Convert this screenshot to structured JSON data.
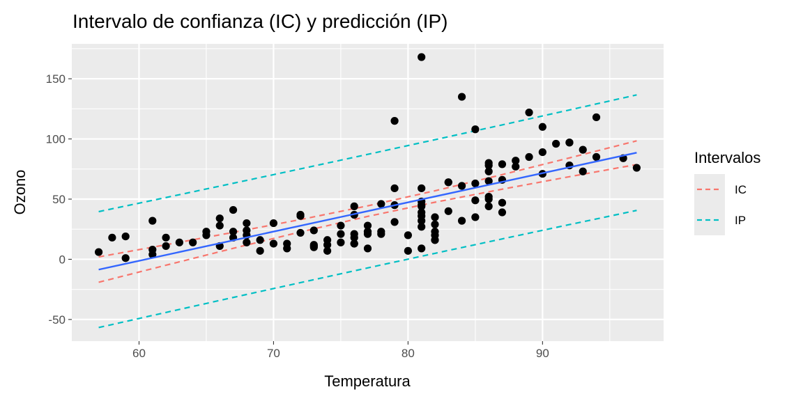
{
  "chart_data": {
    "type": "scatter",
    "title": "Intervalo de confianza (IC) y predicción (IP)",
    "xlabel": "Temperatura",
    "ylabel": "Ozono",
    "xlim": [
      55,
      99
    ],
    "ylim": [
      -68,
      179
    ],
    "x_ticks": [
      60,
      70,
      80,
      90
    ],
    "y_ticks": [
      -50,
      0,
      50,
      100,
      150
    ],
    "x_tick_labels": [
      "60",
      "70",
      "80",
      "90"
    ],
    "y_tick_labels": [
      "-50",
      "0",
      "50",
      "100",
      "150"
    ],
    "grid": true,
    "legend": {
      "title": "Intervalos",
      "placement": "right",
      "entries": [
        "IC",
        "IP"
      ]
    },
    "colors": {
      "points": "#000000",
      "fit": "#3366FF",
      "IC": "#F8766D",
      "IP": "#00BFC4",
      "panel": "#EBEBEB",
      "grid": "#FFFFFF"
    },
    "points": [
      [
        67,
        41
      ],
      [
        72,
        36
      ],
      [
        74,
        12
      ],
      [
        62,
        18
      ],
      [
        66,
        28
      ],
      [
        65,
        23
      ],
      [
        59,
        19
      ],
      [
        61,
        8
      ],
      [
        74,
        7
      ],
      [
        69,
        16
      ],
      [
        66,
        11
      ],
      [
        68,
        14
      ],
      [
        58,
        18
      ],
      [
        64,
        14
      ],
      [
        66,
        34
      ],
      [
        57,
        6
      ],
      [
        68,
        30
      ],
      [
        62,
        11
      ],
      [
        59,
        1
      ],
      [
        73,
        11
      ],
      [
        61,
        4
      ],
      [
        61,
        32
      ],
      [
        67,
        23
      ],
      [
        81,
        45
      ],
      [
        79,
        115
      ],
      [
        76,
        37
      ],
      [
        82,
        29
      ],
      [
        90,
        71
      ],
      [
        87,
        39
      ],
      [
        82,
        23
      ],
      [
        77,
        21
      ],
      [
        72,
        37
      ],
      [
        65,
        20
      ],
      [
        73,
        12
      ],
      [
        76,
        13
      ],
      [
        84,
        135
      ],
      [
        85,
        49
      ],
      [
        81,
        32
      ],
      [
        83,
        64
      ],
      [
        83,
        40
      ],
      [
        88,
        77
      ],
      [
        92,
        97
      ],
      [
        92,
        97
      ],
      [
        89,
        85
      ],
      [
        73,
        10
      ],
      [
        81,
        27
      ],
      [
        80,
        7
      ],
      [
        81,
        48
      ],
      [
        82,
        35
      ],
      [
        84,
        61
      ],
      [
        87,
        79
      ],
      [
        85,
        63
      ],
      [
        74,
        16
      ],
      [
        86,
        80
      ],
      [
        85,
        108
      ],
      [
        82,
        20
      ],
      [
        86,
        52
      ],
      [
        88,
        82
      ],
      [
        86,
        50
      ],
      [
        83,
        64
      ],
      [
        81,
        59
      ],
      [
        81,
        39
      ],
      [
        81,
        9
      ],
      [
        82,
        16
      ],
      [
        86,
        78
      ],
      [
        85,
        35
      ],
      [
        87,
        66
      ],
      [
        89,
        122
      ],
      [
        90,
        89
      ],
      [
        90,
        110
      ],
      [
        86,
        44
      ],
      [
        75,
        28
      ],
      [
        86,
        65
      ],
      [
        72,
        22
      ],
      [
        79,
        59
      ],
      [
        77,
        23
      ],
      [
        79,
        31
      ],
      [
        76,
        44
      ],
      [
        78,
        21
      ],
      [
        77,
        9
      ],
      [
        79,
        45
      ],
      [
        81,
        168
      ],
      [
        86,
        73
      ],
      [
        97,
        76
      ],
      [
        94,
        118
      ],
      [
        96,
        84
      ],
      [
        94,
        85
      ],
      [
        91,
        96
      ],
      [
        92,
        78
      ],
      [
        93,
        73
      ],
      [
        93,
        91
      ],
      [
        87,
        47
      ],
      [
        84,
        32
      ],
      [
        80,
        20
      ],
      [
        78,
        23
      ],
      [
        75,
        21
      ],
      [
        73,
        24
      ],
      [
        81,
        44
      ],
      [
        76,
        21
      ],
      [
        77,
        28
      ],
      [
        71,
        9
      ],
      [
        71,
        13
      ],
      [
        78,
        46
      ],
      [
        67,
        18
      ],
      [
        76,
        13
      ],
      [
        68,
        24
      ],
      [
        82,
        16
      ],
      [
        70,
        13
      ],
      [
        77,
        23
      ],
      [
        81,
        36
      ],
      [
        69,
        7
      ],
      [
        63,
        14
      ],
      [
        70,
        30
      ],
      [
        75,
        14
      ],
      [
        76,
        18
      ],
      [
        68,
        20
      ]
    ],
    "fit_line": {
      "x": [
        57,
        97
      ],
      "y": [
        -8.56,
        88.59
      ]
    },
    "bands": {
      "x": [
        57,
        62,
        67,
        72,
        77,
        82,
        87,
        92,
        97
      ],
      "IC_lower": [
        -19.1,
        -4.92,
        9.1,
        22.74,
        35.64,
        47.4,
        58.25,
        68.63,
        78.77
      ],
      "IC_upper": [
        1.98,
        12.08,
        22.36,
        33.0,
        44.4,
        56.92,
        70.35,
        84.27,
        98.41
      ],
      "IP_lower": [
        -56.7,
        -44.15,
        -31.7,
        -19.38,
        -7.15,
        4.95,
        16.94,
        28.83,
        40.6
      ],
      "IP_upper": [
        39.6,
        51.31,
        63.16,
        75.12,
        87.19,
        99.37,
        111.66,
        124.07,
        136.58
      ]
    }
  }
}
